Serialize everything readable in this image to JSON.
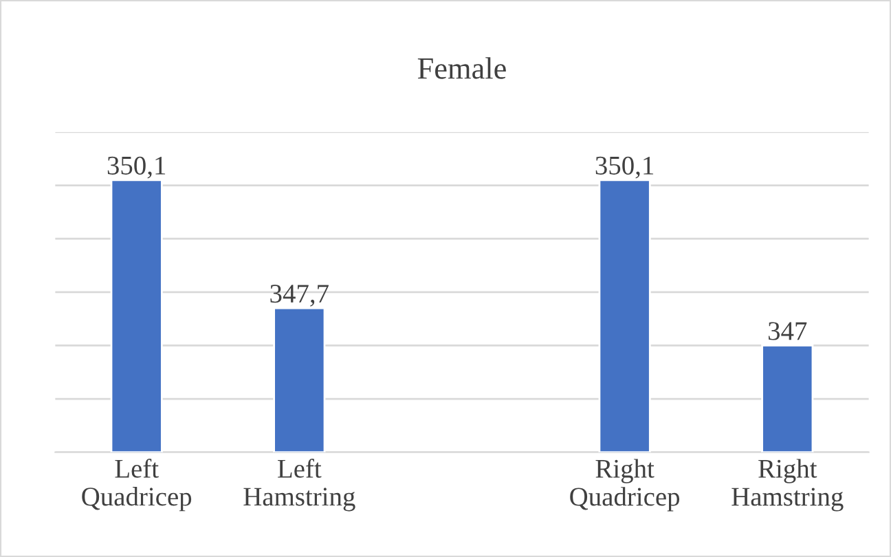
{
  "chart_data": {
    "type": "bar",
    "title": "Female",
    "categories": [
      "Left\nQuadricep",
      "Left\nHamstring",
      null,
      "Right\nQuadricep",
      "Right\nHamstring"
    ],
    "values": [
      350.1,
      347.7,
      null,
      350.1,
      347
    ],
    "value_labels": [
      "350,1",
      "347,7",
      null,
      "350,1",
      "347"
    ],
    "color": "#4472c4",
    "ylim": [
      345,
      351
    ],
    "yticks": [
      {
        "value": 345,
        "label": null
      },
      {
        "value": 346,
        "label": null
      },
      {
        "value": 347,
        "label": null
      },
      {
        "value": 348,
        "label": null
      },
      {
        "value": 349,
        "label": null
      },
      {
        "value": 350,
        "label": null
      },
      {
        "value": 351,
        "label": null
      }
    ],
    "grid": "y",
    "tick_labels": "x"
  }
}
